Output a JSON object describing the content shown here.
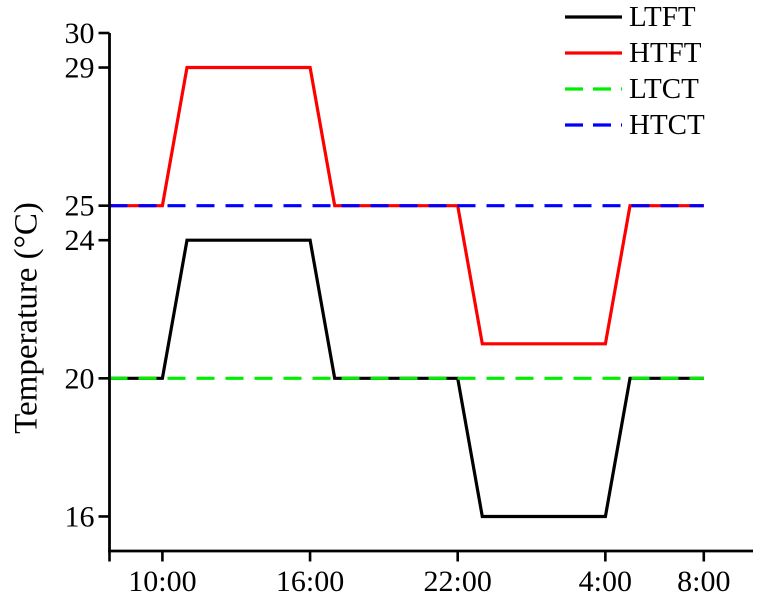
{
  "chart_data": {
    "type": "line",
    "title": "",
    "xlabel": "",
    "ylabel": "Temperature (°C)",
    "grid": false,
    "legend_position": "top-right",
    "x_encoding": "hour of day; values >= 24 are next day",
    "xlim": [
      7.85,
      34.0
    ],
    "ylim": [
      15,
      30
    ],
    "x_ticks": [
      {
        "value": 7.85,
        "label": ""
      },
      {
        "value": 10,
        "label": "10:00"
      },
      {
        "value": 16,
        "label": "16:00"
      },
      {
        "value": 22,
        "label": "22:00"
      },
      {
        "value": 28,
        "label": "4:00"
      },
      {
        "value": 32,
        "label": "8:00"
      }
    ],
    "y_ticks": [
      {
        "value": 16,
        "label": "16"
      },
      {
        "value": 20,
        "label": "20"
      },
      {
        "value": 24,
        "label": "24"
      },
      {
        "value": 25,
        "label": "25"
      },
      {
        "value": 29,
        "label": "29"
      },
      {
        "value": 30,
        "label": "30"
      }
    ],
    "series": [
      {
        "name": "LTFT",
        "color": "#000000",
        "style": "solid",
        "points": [
          [
            7.85,
            20
          ],
          [
            10,
            20
          ],
          [
            11,
            24
          ],
          [
            16,
            24
          ],
          [
            17,
            20
          ],
          [
            22,
            20
          ],
          [
            23,
            16
          ],
          [
            28,
            16
          ],
          [
            29,
            20
          ],
          [
            32,
            20
          ]
        ]
      },
      {
        "name": "HTFT",
        "color": "#ff0000",
        "style": "solid",
        "points": [
          [
            7.85,
            25
          ],
          [
            10,
            25
          ],
          [
            11,
            29
          ],
          [
            16,
            29
          ],
          [
            17,
            25
          ],
          [
            22,
            25
          ],
          [
            23,
            21
          ],
          [
            28,
            21
          ],
          [
            29,
            25
          ],
          [
            32,
            25
          ]
        ]
      },
      {
        "name": "LTCT",
        "color": "#00ee00",
        "style": "dashed",
        "points": [
          [
            7.85,
            20
          ],
          [
            32,
            20
          ]
        ]
      },
      {
        "name": "HTCT",
        "color": "#0000ff",
        "style": "dashed",
        "points": [
          [
            7.85,
            25
          ],
          [
            32,
            25
          ]
        ]
      }
    ]
  }
}
